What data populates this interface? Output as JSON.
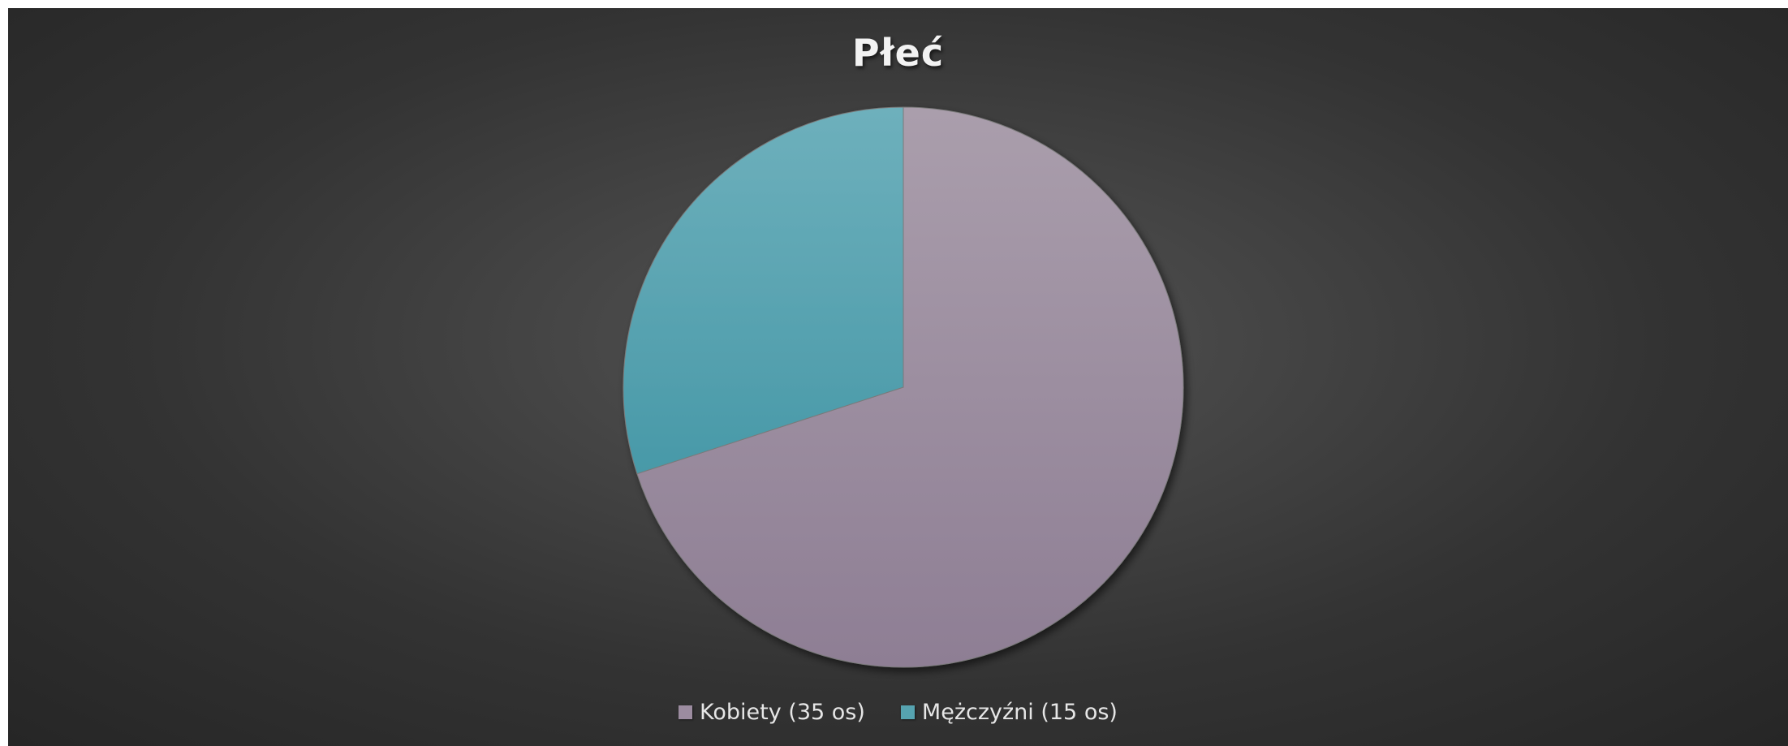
{
  "chart_data": {
    "type": "pie",
    "title": "Płeć",
    "slices": [
      {
        "label": "Kobiety (35 os)",
        "value": 35,
        "color": "#9c8ca0",
        "color_light": "#aa9eac",
        "color_dark": "#8e7e94"
      },
      {
        "label": "Mężczyźni (15 os)",
        "value": 15,
        "color": "#56a3b0",
        "color_light": "#6eb0bc",
        "color_dark": "#4899a8"
      }
    ],
    "legend_position": "bottom",
    "start_angle": "12 o'clock",
    "direction": "clockwise"
  }
}
